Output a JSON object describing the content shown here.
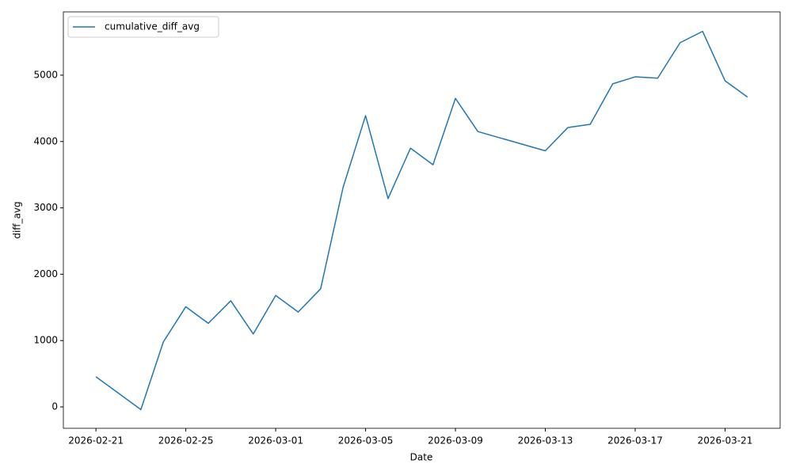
{
  "chart_data": {
    "type": "line",
    "xlabel": "Date",
    "ylabel": "diff_avg",
    "x": [
      "2026-02-21",
      "2026-02-23",
      "2026-02-24",
      "2026-02-25",
      "2026-02-26",
      "2026-02-27",
      "2026-02-28",
      "2026-03-01",
      "2026-03-02",
      "2026-03-03",
      "2026-03-04",
      "2026-03-05",
      "2026-03-06",
      "2026-03-07",
      "2026-03-08",
      "2026-03-09",
      "2026-03-10",
      "2026-03-13",
      "2026-03-14",
      "2026-03-15",
      "2026-03-16",
      "2026-03-17",
      "2026-03-18",
      "2026-03-19",
      "2026-03-20",
      "2026-03-21",
      "2026-03-22"
    ],
    "series": [
      {
        "name": "cumulative_diff_avg",
        "color": "#1f77b4",
        "values": [
          455,
          -40,
          980,
          1510,
          1260,
          1600,
          1100,
          1680,
          1430,
          1780,
          3310,
          4390,
          3140,
          3900,
          3650,
          4650,
          4150,
          3860,
          4210,
          4260,
          4870,
          4975,
          4955,
          5490,
          5660,
          4915,
          4670
        ]
      }
    ],
    "xlim": [
      "2026-02-19T13:12Z",
      "2026-03-23T10:48Z"
    ],
    "xticks": [
      "2026-02-21",
      "2026-02-25",
      "2026-03-01",
      "2026-03-05",
      "2026-03-09",
      "2026-03-13",
      "2026-03-17",
      "2026-03-21"
    ],
    "ylim": [
      -322,
      5954
    ],
    "yticks": [
      0,
      1000,
      2000,
      3000,
      4000,
      5000
    ],
    "grid": false,
    "legend": "upper left"
  }
}
